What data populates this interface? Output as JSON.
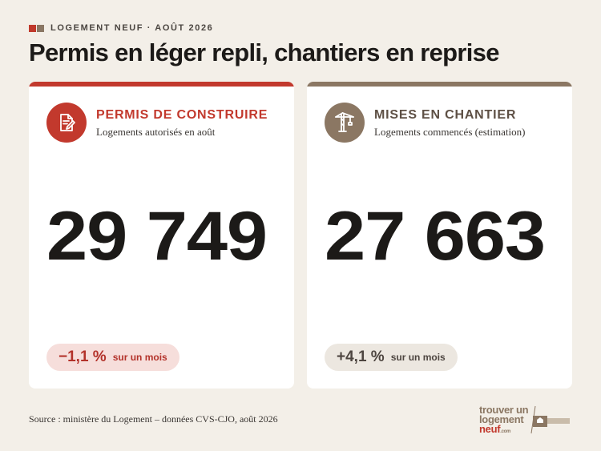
{
  "header": {
    "kicker": "LOGEMENT NEUF · AOÛT 2026",
    "title": "Permis en léger repli, chantiers en reprise"
  },
  "cards": [
    {
      "label": "PERMIS DE CONSTRUIRE",
      "subtitle": "Logements autorisés en août",
      "value": "29 749",
      "change": "−1,1 %",
      "period": "sur un mois",
      "icon": "document-pen-icon",
      "accent": "#c2392d"
    },
    {
      "label": "MISES EN CHANTIER",
      "subtitle": "Logements commencés (estimation)",
      "value": "27 663",
      "change": "+4,1 %",
      "period": "sur un mois",
      "icon": "crane-icon",
      "accent": "#8b7763"
    }
  ],
  "footer": {
    "source": "Source : ministère du Logement – données CVS-CJO, août 2026",
    "logo_line1": "trouver un",
    "logo_line2": "logement",
    "logo_line3": "neuf",
    "logo_suffix": ".com"
  },
  "colors": {
    "background": "#f3efe8",
    "red": "#c2392d",
    "taupe": "#8b7763"
  }
}
